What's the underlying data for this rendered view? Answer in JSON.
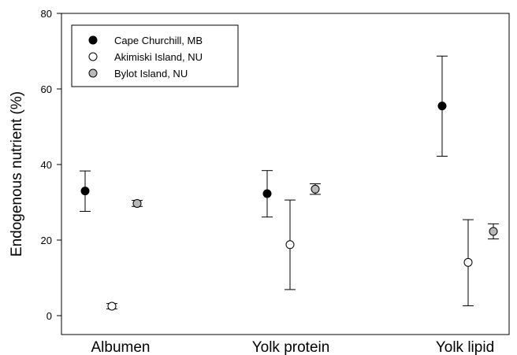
{
  "chart_data": {
    "type": "scatter",
    "title": "",
    "xlabel": "",
    "ylabel": "Endogenous nutrient (%)",
    "ylim": [
      0,
      80
    ],
    "yticks": [
      "0",
      "20",
      "40",
      "60",
      "80"
    ],
    "categories": [
      "Albumen",
      "Yolk protein",
      "Yolk lipid"
    ],
    "grid": false,
    "legend_position": "top-left",
    "series": [
      {
        "name": "Cape Churchill, MB",
        "fill": "#000000",
        "values": [
          33.0,
          32.3,
          55.5
        ],
        "err_low": [
          27.6,
          26.1,
          42.2
        ],
        "err_high": [
          38.3,
          38.4,
          68.7
        ]
      },
      {
        "name": "Akimiski Island, NU",
        "fill": "#ffffff",
        "values": [
          2.5,
          18.8,
          14.1
        ],
        "err_low": [
          1.8,
          6.9,
          2.6
        ],
        "err_high": [
          3.2,
          30.6,
          25.4
        ]
      },
      {
        "name": "Bylot Island, NU",
        "fill": "#b8b8b8",
        "values": [
          29.7,
          33.5,
          22.3
        ],
        "err_low": [
          28.9,
          32.1,
          20.3
        ],
        "err_high": [
          30.5,
          34.9,
          24.3
        ]
      }
    ]
  }
}
